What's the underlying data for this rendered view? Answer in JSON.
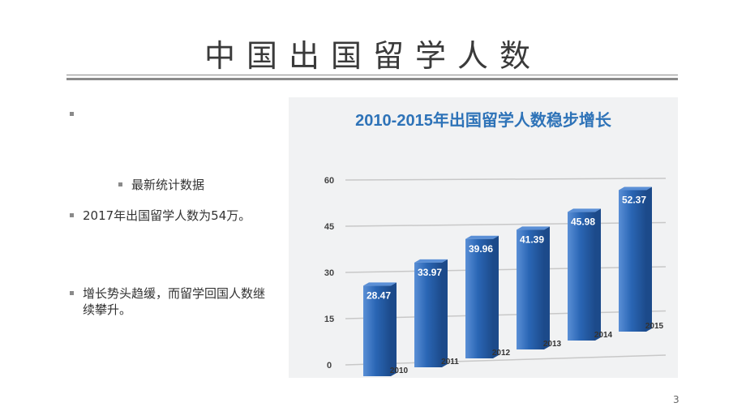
{
  "slide": {
    "title": "中国出国留学人数",
    "page_number": "3"
  },
  "bullets": [
    {
      "text": ""
    },
    {
      "text": "最新统计数据"
    },
    {
      "text": "2017年出国留学人数为54万。"
    },
    {
      "text": "增长势头趋缓，而留学回国人数继续攀升。"
    }
  ],
  "colors": {
    "bar": "#2a66b5",
    "bar_dark": "#1c4a8a",
    "bar_light": "#5a8fd6",
    "title": "#2e73b8",
    "gridline": "#c8c8c8",
    "rule": "#8a8a8a"
  },
  "chart_data": {
    "type": "bar",
    "title": "2010-2015年出国留学人数稳步增长",
    "categories": [
      "2010",
      "2011",
      "2012",
      "2013",
      "2014",
      "2015"
    ],
    "values": [
      28.47,
      33.97,
      39.96,
      41.39,
      45.98,
      52.37
    ],
    "value_labels": [
      "28.47",
      "33.97",
      "39.96",
      "41.39",
      "45.98",
      "52.37"
    ],
    "yticks": [
      "0",
      "15",
      "30",
      "45",
      "60"
    ],
    "ylim": [
      0,
      60
    ],
    "xlabel": "",
    "ylabel": "",
    "grid": true,
    "legend": "none"
  }
}
